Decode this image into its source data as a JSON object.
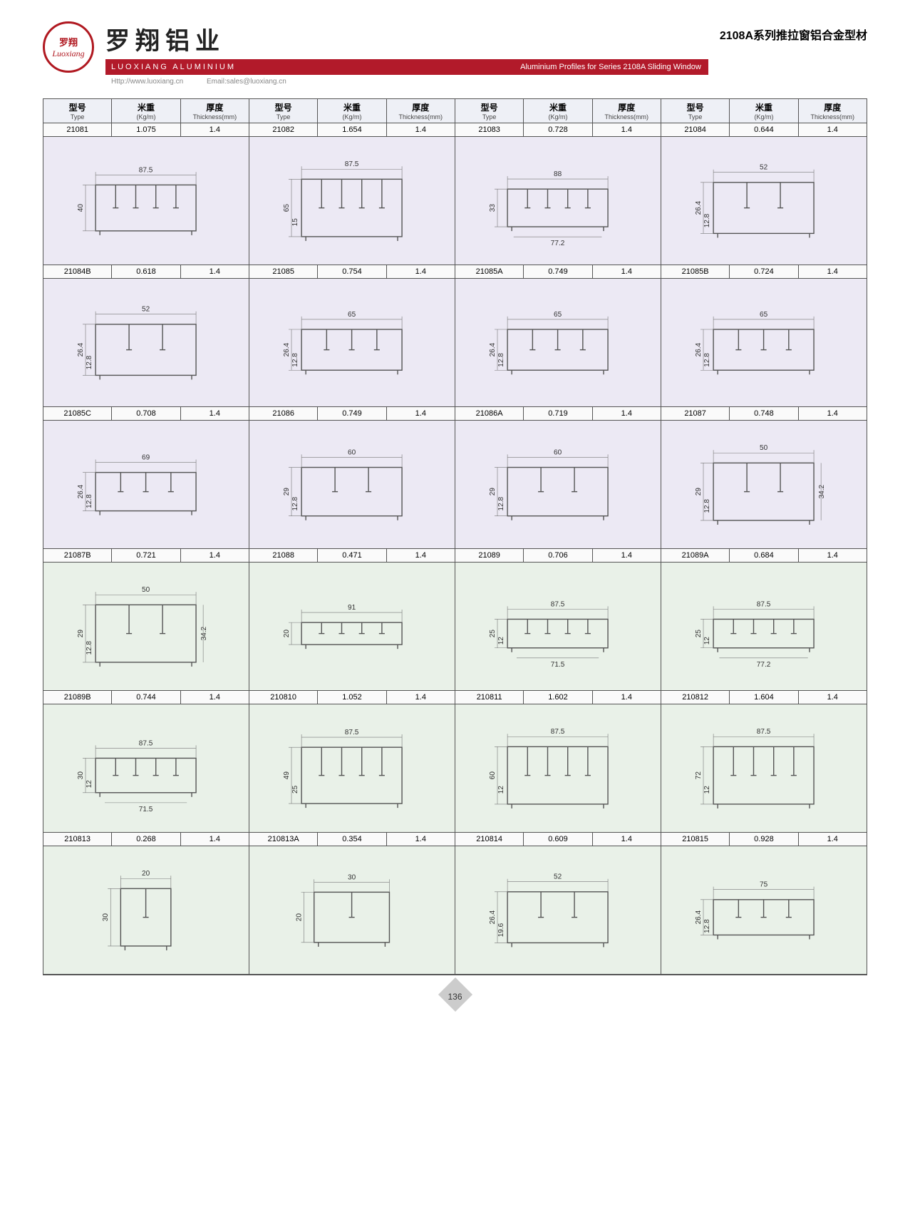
{
  "logo": {
    "cn": "罗翔",
    "en": "Luoxiang"
  },
  "brand": {
    "cn_title": "罗翔铝业",
    "en_title": "LUOXIANG ALUMINIUM",
    "url": "Http://www.luoxiang.cn",
    "email": "Email:sales@luoxiang.cn"
  },
  "series": {
    "cn": "2108A系列推拉窗铝合金型材",
    "en": "Aluminium Profiles for Series 2108A Sliding Window"
  },
  "columns": [
    {
      "cn": "型号",
      "en": "Type"
    },
    {
      "cn": "米重",
      "en": "(Kg/m)"
    },
    {
      "cn": "厚度",
      "en": "Thickness(mm)"
    }
  ],
  "column_repeat": 4,
  "row_bg_colors": {
    "purple": "#ece9f4",
    "green": "#e9f1e8"
  },
  "header_bg": "#eef0f6",
  "brand_bar_color": "#b21a2a",
  "logo_border_color": "#b01820",
  "rows": [
    {
      "bg": "purple",
      "items": [
        {
          "type": "21081",
          "kgm": "1.075",
          "thk": "1.4",
          "dims": {
            "w": "87.5",
            "h": "40"
          }
        },
        {
          "type": "21082",
          "kgm": "1.654",
          "thk": "1.4",
          "dims": {
            "w": "87.5",
            "h": "65",
            "h2": "15"
          }
        },
        {
          "type": "21083",
          "kgm": "0.728",
          "thk": "1.4",
          "dims": {
            "w": "88",
            "w2": "77.2",
            "h": "33"
          }
        },
        {
          "type": "21084",
          "kgm": "0.644",
          "thk": "1.4",
          "dims": {
            "w": "52",
            "h": "26.4",
            "h2": "12.8"
          }
        }
      ]
    },
    {
      "bg": "purple",
      "items": [
        {
          "type": "21084B",
          "kgm": "0.618",
          "thk": "1.4",
          "dims": {
            "w": "52",
            "h": "26.4",
            "h2": "12.8"
          }
        },
        {
          "type": "21085",
          "kgm": "0.754",
          "thk": "1.4",
          "dims": {
            "w": "65",
            "h": "26.4",
            "h2": "12.8"
          }
        },
        {
          "type": "21085A",
          "kgm": "0.749",
          "thk": "1.4",
          "dims": {
            "w": "65",
            "h": "26.4",
            "h2": "12.8"
          }
        },
        {
          "type": "21085B",
          "kgm": "0.724",
          "thk": "1.4",
          "dims": {
            "w": "65",
            "h": "26.4",
            "h2": "12.8"
          }
        }
      ]
    },
    {
      "bg": "purple",
      "items": [
        {
          "type": "21085C",
          "kgm": "0.708",
          "thk": "1.4",
          "dims": {
            "w": "69",
            "h": "26.4",
            "h2": "12.8"
          }
        },
        {
          "type": "21086",
          "kgm": "0.749",
          "thk": "1.4",
          "dims": {
            "w": "60",
            "h": "29",
            "h2": "12.8"
          }
        },
        {
          "type": "21086A",
          "kgm": "0.719",
          "thk": "1.4",
          "dims": {
            "w": "60",
            "h": "29",
            "h2": "12.8"
          }
        },
        {
          "type": "21087",
          "kgm": "0.748",
          "thk": "1.4",
          "dims": {
            "w": "50",
            "h": "29",
            "h2": "12.8",
            "h3": "34.2"
          }
        }
      ]
    },
    {
      "bg": "green",
      "items": [
        {
          "type": "21087B",
          "kgm": "0.721",
          "thk": "1.4",
          "dims": {
            "w": "50",
            "h": "29",
            "h2": "12.8",
            "h3": "34.2"
          }
        },
        {
          "type": "21088",
          "kgm": "0.471",
          "thk": "1.4",
          "dims": {
            "w": "91",
            "h": "20"
          }
        },
        {
          "type": "21089",
          "kgm": "0.706",
          "thk": "1.4",
          "dims": {
            "w": "87.5",
            "w2": "71.5",
            "h": "25",
            "h2": "12"
          }
        },
        {
          "type": "21089A",
          "kgm": "0.684",
          "thk": "1.4",
          "dims": {
            "w": "87.5",
            "w2": "77.2",
            "h": "25",
            "h2": "12"
          }
        }
      ]
    },
    {
      "bg": "green",
      "items": [
        {
          "type": "21089B",
          "kgm": "0.744",
          "thk": "1.4",
          "dims": {
            "w": "87.5",
            "w2": "71.5",
            "h": "30",
            "h2": "12"
          }
        },
        {
          "type": "210810",
          "kgm": "1.052",
          "thk": "1.4",
          "dims": {
            "w": "87.5",
            "h": "49",
            "h2": "25"
          }
        },
        {
          "type": "210811",
          "kgm": "1.602",
          "thk": "1.4",
          "dims": {
            "w": "87.5",
            "h": "60",
            "h2": "12"
          }
        },
        {
          "type": "210812",
          "kgm": "1.604",
          "thk": "1.4",
          "dims": {
            "w": "87.5",
            "h": "72",
            "h2": "12"
          }
        }
      ]
    },
    {
      "bg": "green",
      "items": [
        {
          "type": "210813",
          "kgm": "0.268",
          "thk": "1.4",
          "dims": {
            "w": "20",
            "h": "30"
          }
        },
        {
          "type": "210813A",
          "kgm": "0.354",
          "thk": "1.4",
          "dims": {
            "w": "30",
            "h": "20"
          }
        },
        {
          "type": "210814",
          "kgm": "0.609",
          "thk": "1.4",
          "dims": {
            "w": "52",
            "h": "26.4",
            "h2": "19.6"
          }
        },
        {
          "type": "210815",
          "kgm": "0.928",
          "thk": "1.4",
          "dims": {
            "w": "75",
            "h": "26.4",
            "h2": "12.8"
          }
        }
      ]
    }
  ],
  "page_number": "136",
  "profile_stroke": "#555555",
  "dim_stroke": "#777777"
}
